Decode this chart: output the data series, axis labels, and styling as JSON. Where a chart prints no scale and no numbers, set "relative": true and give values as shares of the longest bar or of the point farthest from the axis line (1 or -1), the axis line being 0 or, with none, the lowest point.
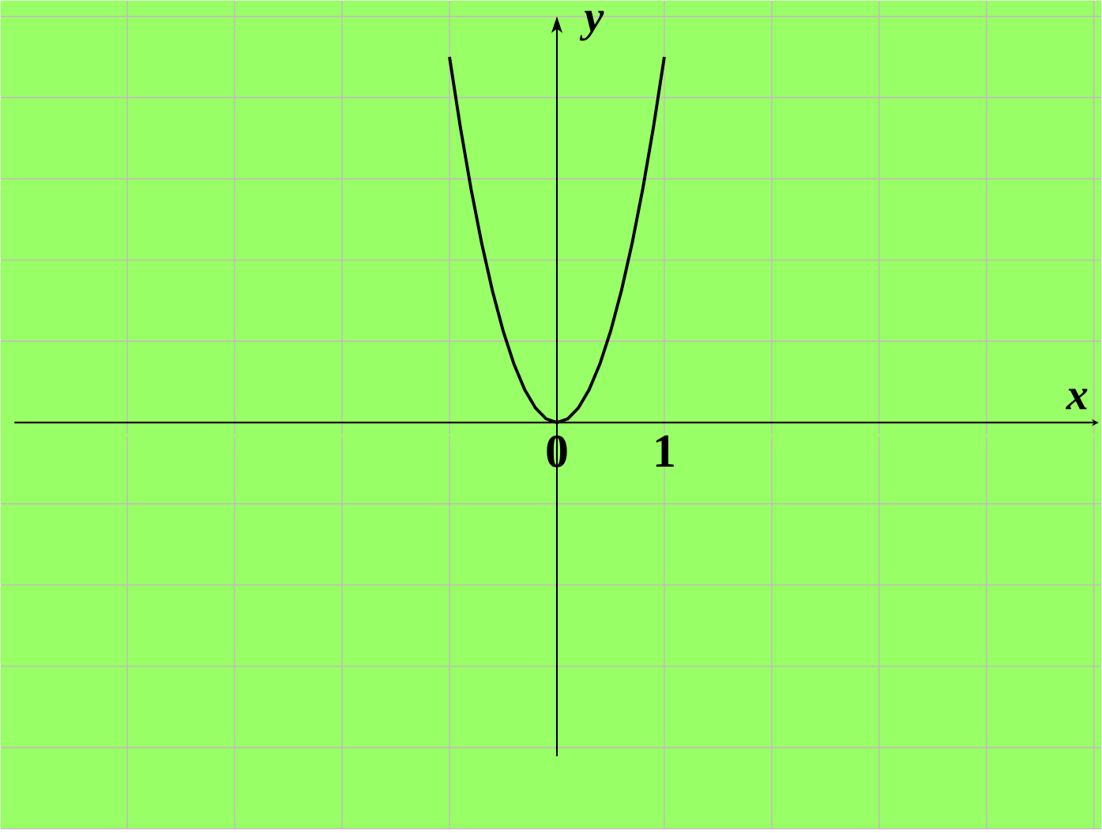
{
  "chart_data": {
    "type": "line",
    "relative": true,
    "xlabel": "x",
    "ylabel": "y",
    "color": "#000000",
    "grid": true,
    "xlim": [
      -5.18,
      5.07
    ],
    "xticks": [
      {
        "value": -4,
        "label": null
      },
      {
        "value": -3,
        "label": null
      },
      {
        "value": -2,
        "label": null
      },
      {
        "value": -1,
        "label": null
      },
      0,
      1,
      {
        "value": 2,
        "label": null
      },
      {
        "value": 3,
        "label": null
      },
      {
        "value": 4,
        "label": null
      },
      {
        "value": 5,
        "label": null
      }
    ],
    "x": [
      -1,
      -0.9,
      -0.8,
      -0.7,
      -0.6,
      -0.5,
      -0.4,
      -0.3,
      -0.2,
      -0.1,
      0,
      0.1,
      0.2,
      0.3,
      0.4,
      0.5,
      0.6,
      0.7,
      0.8,
      0.9,
      1
    ],
    "values": [
      1,
      0.81,
      0.64,
      0.49,
      0.36,
      0.25,
      0.16,
      0.09,
      0.04,
      0.01,
      0,
      0.01,
      0.04,
      0.09,
      0.16,
      0.25,
      0.36,
      0.49,
      0.64,
      0.81,
      1
    ]
  }
}
